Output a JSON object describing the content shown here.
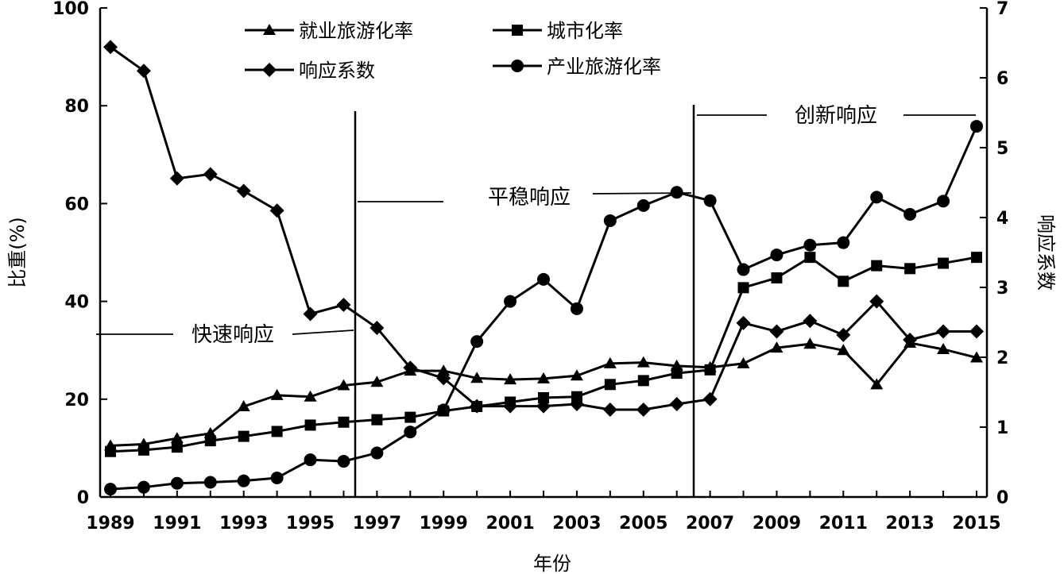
{
  "chart_data": {
    "type": "line",
    "xlabel": "年份",
    "ylabel_left": "比重(%)",
    "ylabel_right": "响应系数",
    "ylim_left": [
      0,
      100
    ],
    "ylim_right": [
      0,
      7
    ],
    "xlim": [
      1989,
      2015
    ],
    "x": [
      1989,
      1990,
      1991,
      1992,
      1993,
      1994,
      1995,
      1996,
      1997,
      1998,
      1999,
      2000,
      2001,
      2002,
      2003,
      2004,
      2005,
      2006,
      2007,
      2008,
      2009,
      2010,
      2011,
      2012,
      2013,
      2014,
      2015
    ],
    "x_tick_labels": [
      "1989",
      "1991",
      "1993",
      "1995",
      "1997",
      "1999",
      "2001",
      "2003",
      "2005",
      "2007",
      "2009",
      "2011",
      "2013",
      "2015"
    ],
    "y_left_ticks": [
      "0",
      "20",
      "40",
      "60",
      "80",
      "100"
    ],
    "y_right_ticks": [
      "0",
      "1",
      "2",
      "3",
      "4",
      "5",
      "6",
      "7"
    ],
    "grid": false,
    "legend_position": "top-left",
    "series": [
      {
        "name": "就业旅游化率",
        "marker": "triangle",
        "axis": "left",
        "values": [
          10.5,
          10.8,
          12,
          13,
          18.5,
          20.8,
          20.5,
          22.8,
          23.5,
          25.8,
          25.8,
          24.3,
          24,
          24.2,
          24.8,
          27.3,
          27.5,
          26.8,
          26.5,
          27.3,
          30.5,
          31.3,
          30,
          23,
          31.5,
          30.2,
          28.5
        ]
      },
      {
        "name": "城市化率",
        "marker": "square",
        "axis": "left",
        "values": [
          9.3,
          9.6,
          10.2,
          11.5,
          12.4,
          13.4,
          14.7,
          15.3,
          15.8,
          16.3,
          17.6,
          18.5,
          19.4,
          20.3,
          20.5,
          23,
          23.8,
          25.3,
          26,
          42.8,
          44.8,
          49,
          44.1,
          47.3,
          46.7,
          47.8,
          49
        ]
      },
      {
        "name": "响应系数",
        "marker": "diamond",
        "axis": "right",
        "values": [
          6.44,
          6.1,
          4.56,
          4.62,
          4.38,
          4.1,
          2.62,
          2.75,
          2.42,
          1.85,
          1.7,
          1.3,
          1.3,
          1.3,
          1.33,
          1.25,
          1.25,
          1.33,
          1.4,
          2.49,
          2.37,
          2.52,
          2.32,
          2.8,
          2.25,
          2.37,
          2.37
        ]
      },
      {
        "name": "产业旅游化率",
        "marker": "circle",
        "axis": "left",
        "values": [
          1.6,
          2.0,
          2.8,
          3.0,
          3.3,
          3.9,
          7.6,
          7.3,
          9,
          13.3,
          17.8,
          31.8,
          40,
          44.5,
          38.5,
          56.5,
          59.6,
          62.3,
          60.6,
          46.5,
          49.5,
          51.5,
          52,
          61.3,
          57.8,
          60.5,
          75.8
        ]
      }
    ],
    "annotations": [
      "快速响应",
      "平稳响应",
      "创新响应"
    ]
  }
}
